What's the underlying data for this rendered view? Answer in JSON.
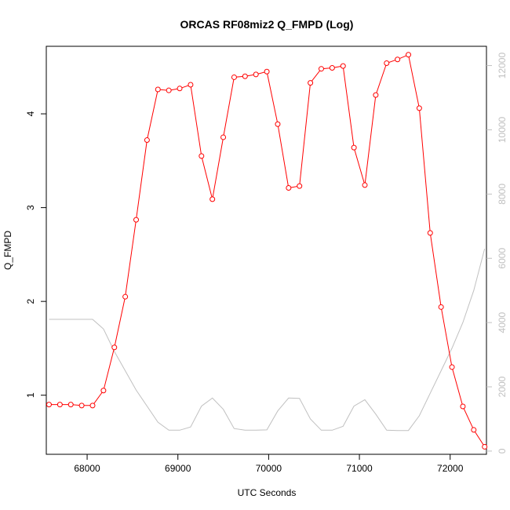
{
  "chart_data": {
    "type": "line",
    "title": "ORCAS RF08miz2 Q_FMPD (Log)",
    "xlabel": "UTC Seconds",
    "ylabel": "Q_FMPD",
    "xlim": [
      67550,
      72400
    ],
    "ylim": [
      0.37,
      4.72
    ],
    "y2lim": [
      -100,
      12600
    ],
    "x_ticks": [
      68000,
      69000,
      70000,
      71000,
      72000
    ],
    "x_tick_labels": [
      "68000",
      "69000",
      "70000",
      "71000",
      "72000"
    ],
    "y_ticks": [
      1,
      2,
      3,
      4
    ],
    "y_tick_labels": [
      "1",
      "2",
      "3",
      "4"
    ],
    "y2_ticks": [
      0,
      2000,
      4000,
      6000,
      8000,
      10000,
      12000
    ],
    "y2_tick_labels": [
      "0",
      "2000",
      "4000",
      "6000",
      "8000",
      "10000",
      "12000"
    ],
    "grid": false,
    "colors": {
      "primary": "#ff0000",
      "secondary": "#c0c0c0",
      "frame": "#000000",
      "right_axis": "#c0c0c0"
    },
    "series": [
      {
        "axis": "left",
        "style": "line+circle",
        "x": [
          67580,
          67700,
          67820,
          67940,
          68060,
          68180,
          68300,
          68420,
          68540,
          68660,
          68780,
          68900,
          69020,
          69140,
          69260,
          69380,
          69500,
          69620,
          69740,
          69860,
          69980,
          70100,
          70220,
          70340,
          70460,
          70580,
          70700,
          70820,
          70940,
          71060,
          71180,
          71300,
          71420,
          71540,
          71660,
          71780,
          71900,
          72020,
          72140,
          72260,
          72380
        ],
        "values": [
          0.9,
          0.9,
          0.9,
          0.89,
          0.89,
          1.05,
          1.51,
          2.05,
          2.87,
          3.72,
          4.26,
          4.25,
          4.27,
          4.31,
          3.55,
          3.09,
          3.75,
          4.39,
          4.4,
          4.42,
          4.45,
          3.89,
          3.21,
          3.23,
          4.33,
          4.48,
          4.49,
          4.51,
          3.64,
          3.24,
          4.2,
          4.54,
          4.58,
          4.63,
          4.06,
          2.73,
          1.94,
          1.3,
          0.88,
          0.63,
          0.45
        ]
      },
      {
        "axis": "right",
        "style": "line",
        "x": [
          67580,
          67700,
          67820,
          67940,
          68060,
          68180,
          68300,
          68420,
          68540,
          68660,
          68780,
          68900,
          69020,
          69140,
          69260,
          69380,
          69500,
          69620,
          69740,
          69860,
          69980,
          70100,
          70220,
          70340,
          70460,
          70580,
          70700,
          70820,
          70940,
          71060,
          71180,
          71300,
          71420,
          71540,
          71660,
          71780,
          71900,
          72020,
          72140,
          72260,
          72380
        ],
        "values": [
          4100,
          4100,
          4100,
          4100,
          4100,
          3800,
          3100,
          2500,
          1900,
          1400,
          900,
          650,
          650,
          750,
          1400,
          1650,
          1300,
          700,
          650,
          650,
          660,
          1250,
          1650,
          1640,
          1000,
          650,
          650,
          770,
          1400,
          1600,
          1150,
          650,
          640,
          640,
          1100,
          1800,
          2500,
          3200,
          4000,
          5000,
          6300
        ]
      }
    ]
  }
}
